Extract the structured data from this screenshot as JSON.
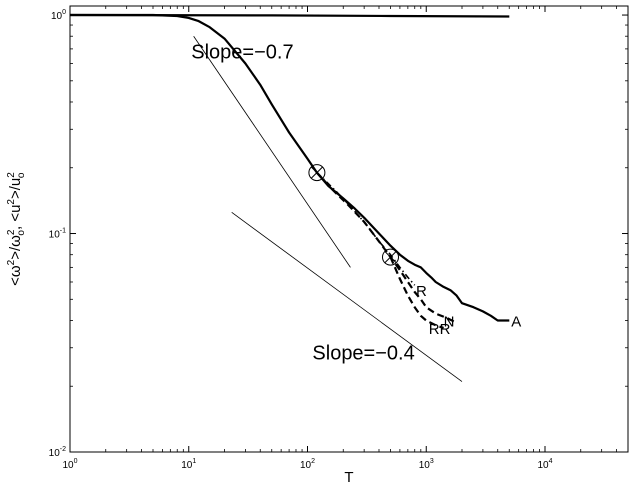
{
  "chart_data": {
    "type": "line",
    "title": "",
    "xlabel": "T",
    "ylabel_parts": [
      "<ω",
      "2",
      ">/ω",
      "2",
      "o",
      ", <u",
      "2",
      ">/u",
      "2",
      "o"
    ],
    "x_scale": "log",
    "y_scale": "log",
    "xlim": [
      1,
      50000
    ],
    "ylim": [
      0.01,
      1.1
    ],
    "grid": false,
    "legend": "none",
    "x_ticks": [
      {
        "value": 1,
        "base": "10",
        "exp": "0"
      },
      {
        "value": 10,
        "base": "10",
        "exp": "1"
      },
      {
        "value": 100,
        "base": "10",
        "exp": "2"
      },
      {
        "value": 1000,
        "base": "10",
        "exp": "3"
      },
      {
        "value": 10000,
        "base": "10",
        "exp": "4"
      }
    ],
    "y_ticks": [
      {
        "value": 0.01,
        "base": "10",
        "exp": "-2"
      },
      {
        "value": 0.1,
        "base": "10",
        "exp": "-1"
      },
      {
        "value": 1,
        "base": "10",
        "exp": "0"
      }
    ],
    "series": [
      {
        "label": "",
        "style": "solid",
        "width": 2.2,
        "x": [
          1,
          50,
          500,
          5000
        ],
        "y": [
          1.0,
          0.996,
          0.99,
          0.985
        ]
      },
      {
        "label": "A",
        "style": "solid",
        "width": 2.2,
        "x": [
          1,
          5,
          8,
          10,
          12,
          15,
          20,
          30,
          40,
          50,
          70,
          100,
          120,
          150,
          200,
          250,
          300,
          400,
          500,
          600,
          700,
          800,
          900,
          1000,
          1100,
          1200,
          1400,
          1600,
          1800,
          2000,
          2500,
          3000,
          3500,
          4000,
          5000
        ],
        "y": [
          1.0,
          1.0,
          0.99,
          0.97,
          0.94,
          0.88,
          0.78,
          0.6,
          0.48,
          0.39,
          0.29,
          0.22,
          0.19,
          0.165,
          0.145,
          0.13,
          0.118,
          0.1,
          0.088,
          0.08,
          0.075,
          0.072,
          0.07,
          0.066,
          0.063,
          0.06,
          0.057,
          0.055,
          0.052,
          0.048,
          0.046,
          0.044,
          0.042,
          0.04,
          0.04
        ]
      },
      {
        "label": "N",
        "style": "dashed",
        "width": 2.2,
        "x": [
          120,
          160,
          220,
          300,
          400,
          500,
          600,
          700,
          800,
          900,
          1000,
          1200,
          1500,
          1800
        ],
        "y": [
          0.19,
          0.16,
          0.135,
          0.113,
          0.092,
          0.078,
          0.068,
          0.06,
          0.054,
          0.05,
          0.046,
          0.043,
          0.041,
          0.039
        ]
      },
      {
        "label": "R",
        "style": "dashdot",
        "width": 1.6,
        "x": [
          120,
          170,
          240,
          320,
          400,
          500,
          600,
          700,
          800
        ],
        "y": [
          0.19,
          0.158,
          0.13,
          0.108,
          0.092,
          0.08,
          0.07,
          0.063,
          0.058
        ]
      },
      {
        "label": "RR",
        "style": "dashed",
        "width": 2.2,
        "x": [
          500,
          600,
          700,
          800,
          900,
          1000,
          1200,
          1400
        ],
        "y": [
          0.078,
          0.062,
          0.052,
          0.046,
          0.042,
          0.04,
          0.038,
          0.037
        ]
      }
    ],
    "reference_lines": [
      {
        "label": "Slope=−0.7",
        "x": [
          11,
          230
        ],
        "y": [
          0.8,
          0.07
        ]
      },
      {
        "label": "Slope=−0.4",
        "x": [
          23,
          2000
        ],
        "y": [
          0.125,
          0.021
        ]
      }
    ],
    "markers": [
      {
        "x": 120,
        "y": 0.19,
        "symbol": "circle-plus"
      },
      {
        "x": 500,
        "y": 0.078,
        "symbol": "circle-plus"
      }
    ],
    "curve_labels": [
      {
        "text": "A",
        "x": 5200,
        "y": 0.04
      },
      {
        "text": "N",
        "x": 1400,
        "y": 0.04
      },
      {
        "text": "R",
        "x": 820,
        "y": 0.055
      },
      {
        "text": "RR",
        "x": 1050,
        "y": 0.037
      }
    ],
    "annotations": [
      {
        "text": "Slope=−0.7",
        "x": 10.5,
        "y": 0.68
      },
      {
        "text": "Slope=−0.4",
        "x": 110,
        "y": 0.0285
      }
    ]
  }
}
